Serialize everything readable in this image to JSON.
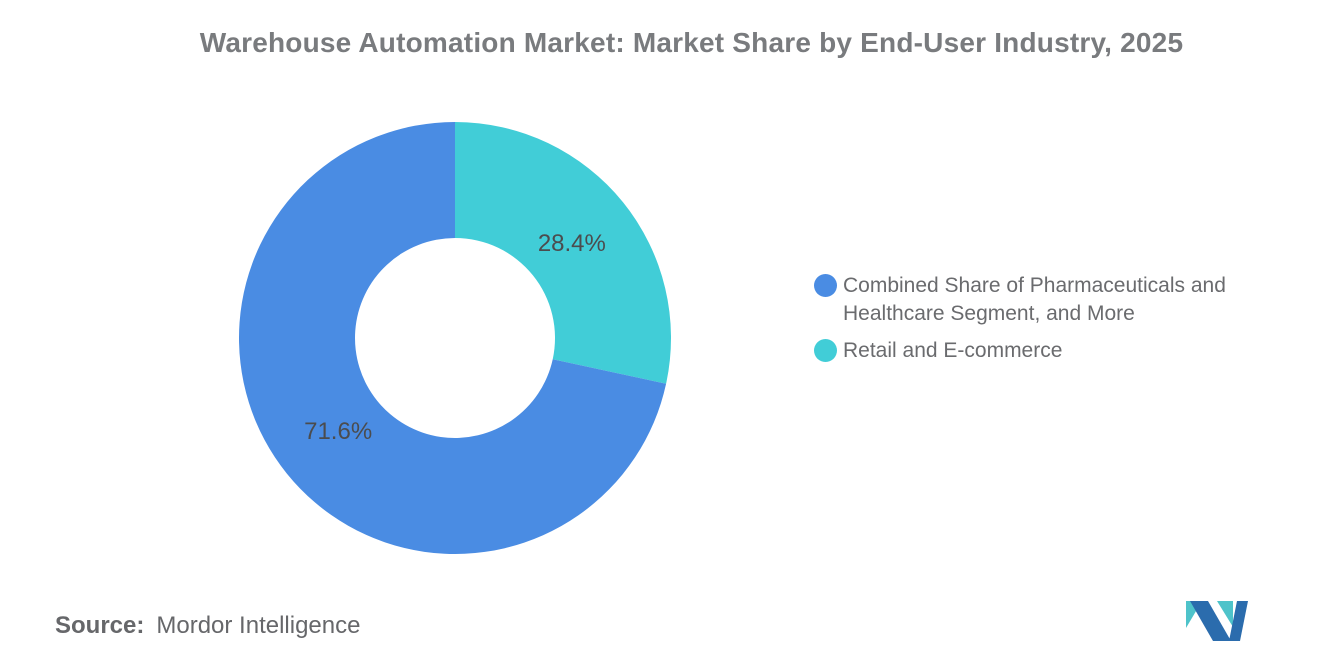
{
  "title": "Warehouse Automation Market: Market Share by End-User Industry, 2025",
  "source": {
    "label": "Source:",
    "value": "Mordor Intelligence"
  },
  "chart_data": {
    "type": "pie",
    "donut": true,
    "title": "Warehouse Automation Market: Market Share by End-User Industry, 2025",
    "unit": "%",
    "start_angle": "12-o-clock",
    "direction": "clockwise",
    "inner_radius_pct": 46,
    "legend_position": "right",
    "slices": [
      {
        "name": "Combined Share of Pharmaceuticals and Healthcare Segment, and More",
        "value": 71.6,
        "label": "71.6%",
        "color": "#4a8ce3"
      },
      {
        "name": "Retail and E-commerce",
        "value": 28.4,
        "label": "28.4%",
        "color": "#41cdd7"
      }
    ]
  },
  "logo": {
    "alt": "Mordor Intelligence logo",
    "teal": "#4ec3ca",
    "blue": "#2b6cad"
  }
}
